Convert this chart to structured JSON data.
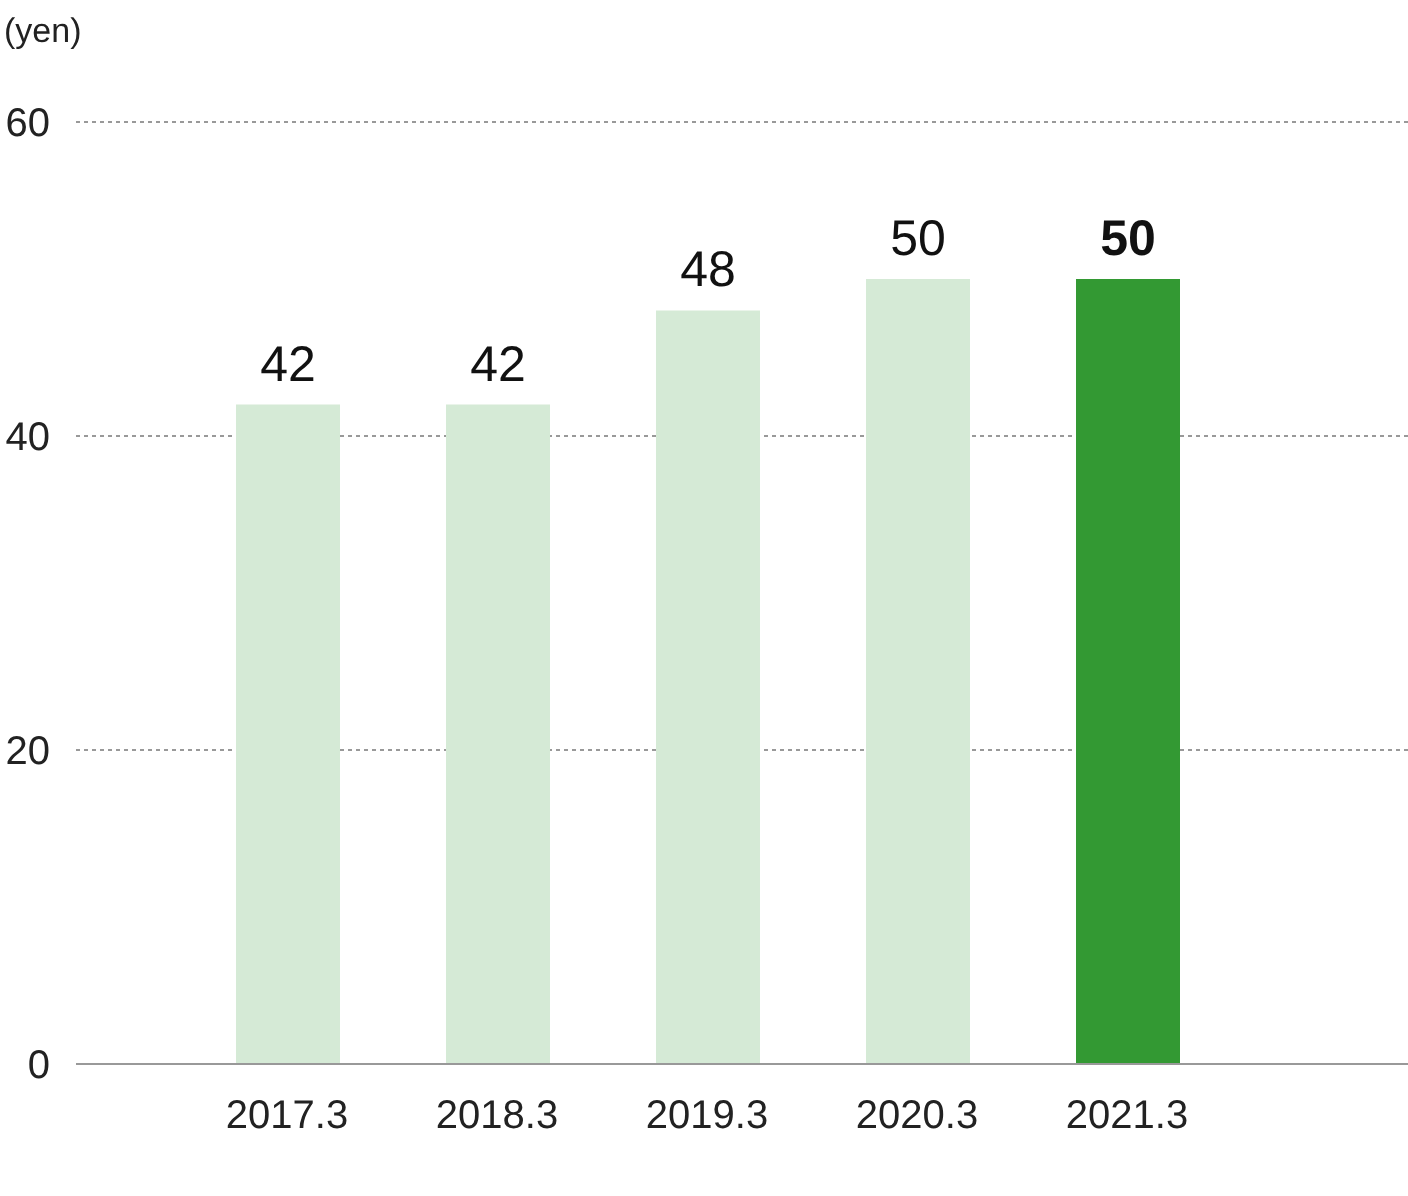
{
  "chart_data": {
    "type": "bar",
    "ylabel": "(yen)",
    "categories": [
      "2017.3",
      "2018.3",
      "2019.3",
      "2020.3",
      "2021.3"
    ],
    "values": [
      42,
      42,
      48,
      50,
      50
    ],
    "colors": [
      "#d5ead6",
      "#d5ead6",
      "#d5ead6",
      "#d5ead6",
      "#339933"
    ],
    "ylim": [
      0,
      60
    ],
    "yticks": [
      0,
      20,
      40,
      60
    ],
    "grid": "y",
    "data_labels": true
  }
}
